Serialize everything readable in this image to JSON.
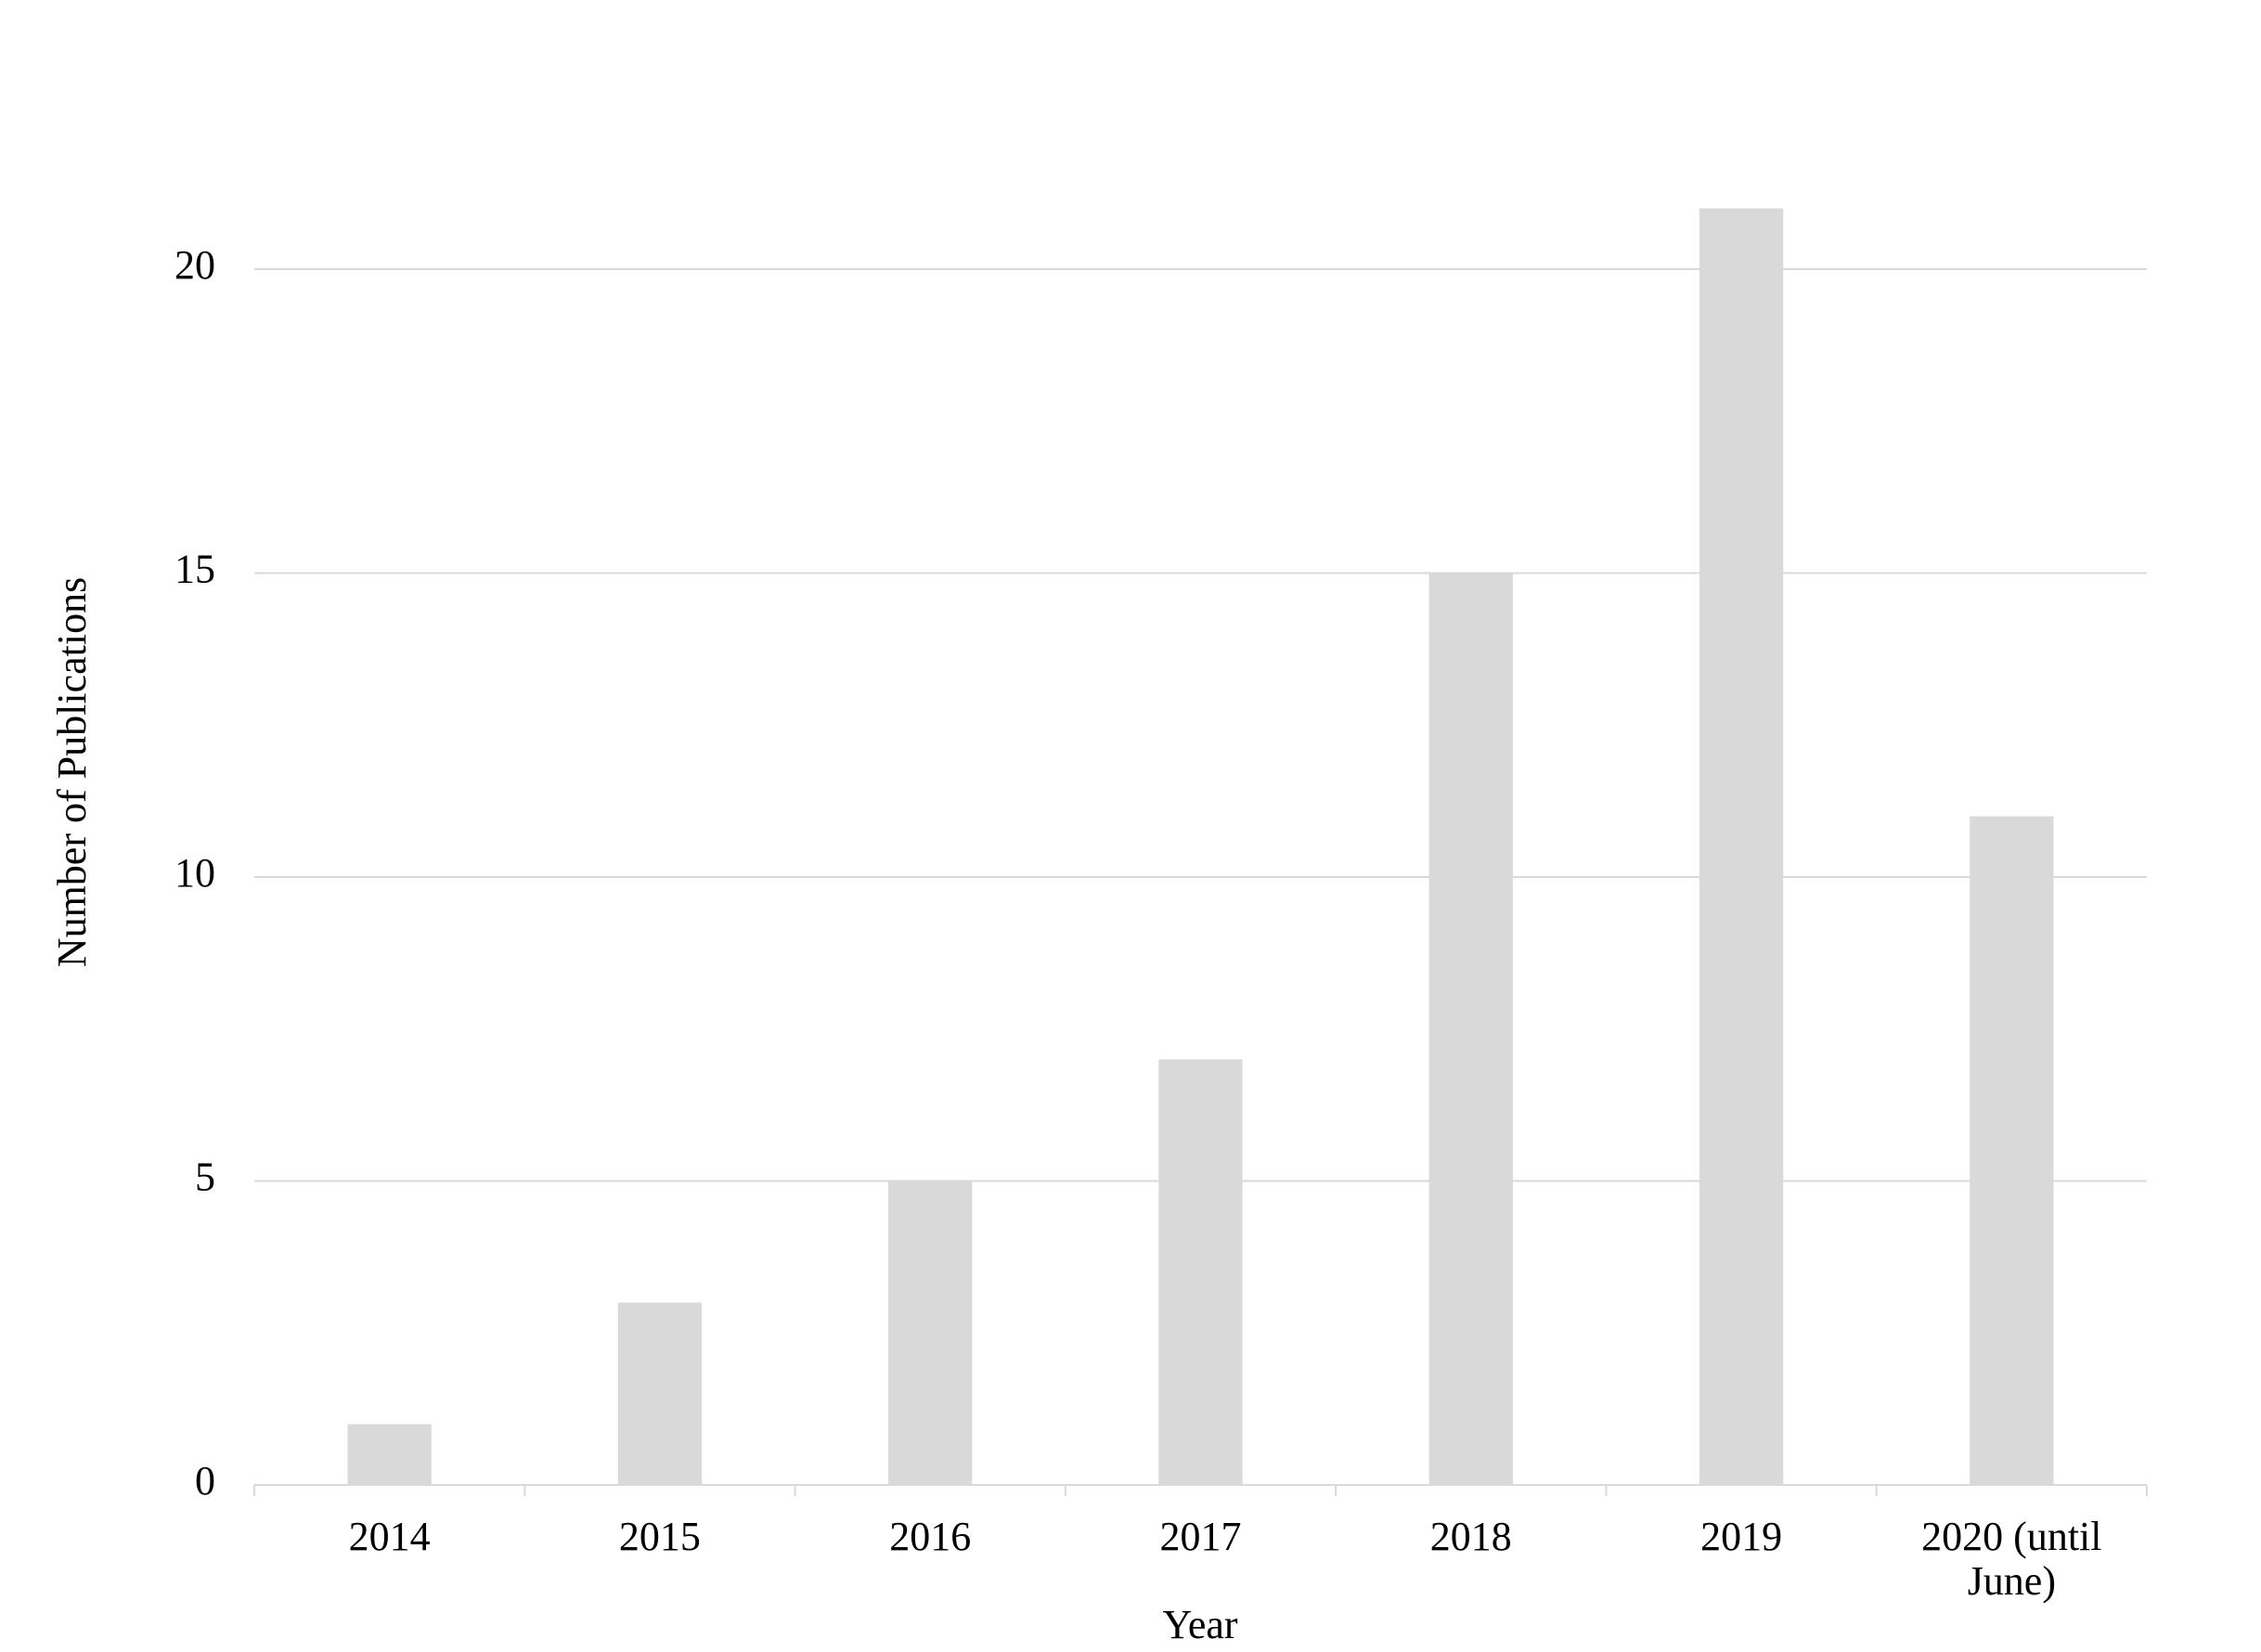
{
  "chart_data": {
    "type": "bar",
    "x_label": "Year",
    "y_label": "Number of Publications",
    "categories": [
      "2014",
      "2015",
      "2016",
      "2017",
      "2018",
      "2019",
      "2020 (until June)"
    ],
    "values": [
      1,
      3,
      5,
      7,
      15,
      21,
      11
    ],
    "color": "#d9d9d9",
    "ylim": [
      0,
      22
    ],
    "yticks": [
      0,
      5,
      10,
      15,
      20
    ],
    "grid": true
  }
}
